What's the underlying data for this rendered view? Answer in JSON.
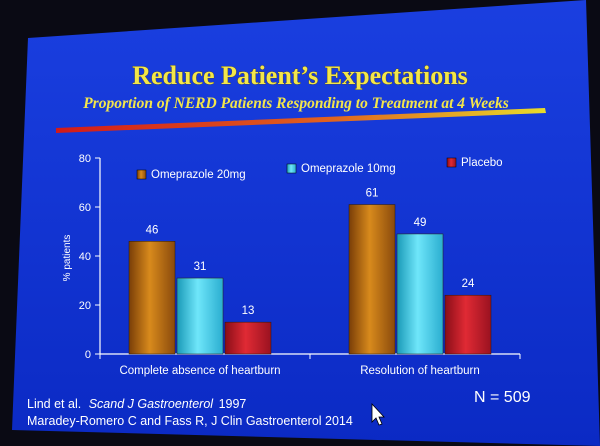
{
  "slide": {
    "title": "Reduce Patient’s Expectations",
    "subtitle": "Proportion of NERD Patients Responding to Treatment at 4 Weeks",
    "citation_1_author": "Lind et al.",
    "citation_1_journal": "Scand J Gastroenterol",
    "citation_1_year": "1997",
    "citation_2": "Maradey-Romero C and Fass R, J Clin Gastroenterol 2014",
    "n_label": "N = 509"
  },
  "colors": {
    "background": "#0d2fd0",
    "title": "#f3e64a",
    "underline_left": "#d21a1a",
    "underline_right": "#e8dc2a",
    "omeprazole_20": "#b76a12",
    "omeprazole_10": "#3fd0ec",
    "placebo": "#c01a26"
  },
  "chart_data": {
    "type": "bar",
    "ylabel": "% patients",
    "ylim": [
      0,
      80
    ],
    "yticks": [
      "0",
      "20",
      "40",
      "60",
      "80"
    ],
    "categories": [
      "Complete absence of heartburn",
      "Resolution of heartburn"
    ],
    "series": [
      {
        "name": "Omeprazole 20mg",
        "values": [
          46,
          61
        ]
      },
      {
        "name": "Omeprazole 10mg",
        "values": [
          31,
          49
        ]
      },
      {
        "name": "Placebo",
        "values": [
          13,
          24
        ]
      }
    ],
    "legend_position": "top"
  }
}
